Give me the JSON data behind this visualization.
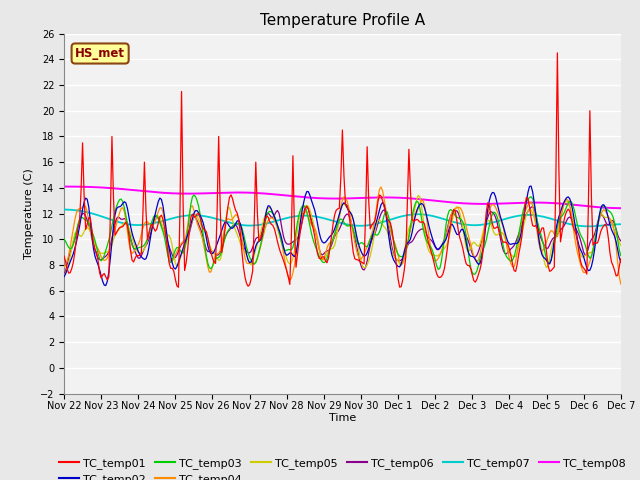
{
  "title": "Temperature Profile A",
  "xlabel": "Time",
  "ylabel": "Temperature (C)",
  "ylim": [
    -2,
    26
  ],
  "yticks": [
    -2,
    0,
    2,
    4,
    6,
    8,
    10,
    12,
    14,
    16,
    18,
    20,
    22,
    24,
    26
  ],
  "x_labels": [
    "Nov 22",
    "Nov 23",
    "Nov 24",
    "Nov 25",
    "Nov 26",
    "Nov 27",
    "Nov 28",
    "Nov 29",
    "Nov 30",
    "Dec 1",
    "Dec 2",
    "Dec 3",
    "Dec 4",
    "Dec 5",
    "Dec 6",
    "Dec 7"
  ],
  "annotation_text": "HS_met",
  "annotation_color": "#8B0000",
  "annotation_bg": "#FFFF99",
  "annotation_border": "#8B4513",
  "series_colors": {
    "TC_temp01": "#FF0000",
    "TC_temp02": "#0000CD",
    "TC_temp03": "#00CC00",
    "TC_temp04": "#FF8C00",
    "TC_temp05": "#CCCC00",
    "TC_temp06": "#8B008B",
    "TC_temp07": "#00CCCC",
    "TC_temp08": "#FF00FF"
  },
  "background_color": "#E8E8E8",
  "plot_bg_color": "#F2F2F2",
  "grid_color": "#FFFFFF",
  "title_fontsize": 11,
  "legend_fontsize": 8,
  "axis_label_fontsize": 8,
  "tick_fontsize": 7
}
